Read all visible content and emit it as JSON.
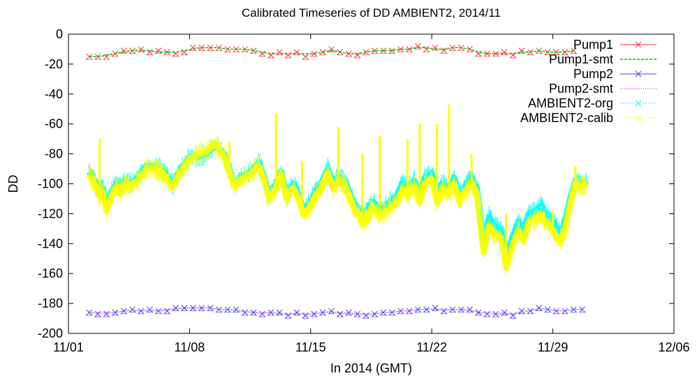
{
  "chart_data": {
    "type": "line",
    "title": "Calibrated Timeseries of DD AMBIENT2, 2014/11",
    "xlabel": "In 2014 (GMT)",
    "ylabel": "DD",
    "x_unit": "day of November 2014",
    "xlim": [
      1,
      36
    ],
    "ylim": [
      -200,
      0
    ],
    "x_ticks": [
      {
        "value": 1,
        "label": "11/01"
      },
      {
        "value": 8,
        "label": "11/08"
      },
      {
        "value": 15,
        "label": "11/15"
      },
      {
        "value": 22,
        "label": "11/22"
      },
      {
        "value": 29,
        "label": "11/29"
      },
      {
        "value": 36,
        "label": "12/06"
      }
    ],
    "y_ticks": [
      0,
      -20,
      -40,
      -60,
      -80,
      -100,
      -120,
      -140,
      -160,
      -180,
      -200
    ],
    "legend_position": "top-right",
    "series": [
      {
        "name": "Pump1",
        "color": "#ff3030",
        "style": "points-x",
        "x": [
          2.2,
          2.7,
          3.2,
          3.7,
          4.2,
          4.7,
          5.2,
          5.7,
          6.2,
          6.7,
          7.2,
          7.7,
          8.2,
          8.7,
          9.2,
          9.7,
          10.2,
          10.7,
          11.2,
          11.7,
          12.2,
          12.7,
          13.2,
          13.7,
          14.2,
          14.7,
          15.2,
          15.7,
          16.2,
          16.7,
          17.2,
          17.7,
          18.2,
          18.7,
          19.2,
          19.7,
          20.2,
          20.7,
          21.2,
          21.7,
          22.2,
          22.7,
          23.2,
          23.7,
          24.2,
          24.7,
          25.2,
          25.7,
          26.2,
          26.7,
          27.2,
          27.7,
          28.2,
          28.7,
          29.2,
          29.7,
          30.2
        ],
        "y": [
          -15,
          -15,
          -15,
          -13,
          -11,
          -11,
          -10,
          -12,
          -11,
          -12,
          -13,
          -12,
          -9,
          -9,
          -9,
          -9,
          -10,
          -10,
          -10,
          -11,
          -13,
          -14,
          -12,
          -14,
          -12,
          -15,
          -13,
          -12,
          -10,
          -12,
          -13,
          -14,
          -12,
          -11,
          -11,
          -11,
          -10,
          -10,
          -8,
          -10,
          -9,
          -11,
          -9,
          -9,
          -10,
          -13,
          -13,
          -13,
          -12,
          -14,
          -11,
          -12,
          -11,
          -12,
          -12,
          -12,
          -11
        ]
      },
      {
        "name": "Pump1-smt",
        "color": "#00cc00",
        "style": "dashed",
        "x": [
          2.2,
          2.7,
          3.2,
          3.7,
          4.2,
          4.7,
          5.2,
          5.7,
          6.2,
          6.7,
          7.2,
          7.7,
          8.2,
          8.7,
          9.2,
          9.7,
          10.2,
          10.7,
          11.2,
          11.7,
          12.2,
          12.7,
          13.2,
          13.7,
          14.2,
          14.7,
          15.2,
          15.7,
          16.2,
          16.7,
          17.2,
          17.7,
          18.2,
          18.7,
          19.2,
          19.7,
          20.2,
          20.7,
          21.2,
          21.7,
          22.2,
          22.7,
          23.2,
          23.7,
          24.2,
          24.7,
          25.2,
          25.7,
          26.2,
          26.7,
          27.2,
          27.7,
          28.2,
          28.7,
          29.2,
          29.7,
          30.2
        ],
        "y": [
          -15,
          -15,
          -14,
          -13,
          -12,
          -11,
          -11,
          -11,
          -12,
          -12,
          -12,
          -11,
          -10,
          -9,
          -9,
          -9,
          -10,
          -10,
          -10,
          -11,
          -12,
          -13,
          -13,
          -13,
          -13,
          -13,
          -13,
          -12,
          -11,
          -12,
          -13,
          -13,
          -12,
          -11,
          -11,
          -11,
          -10,
          -10,
          -9,
          -9,
          -10,
          -10,
          -9,
          -9,
          -10,
          -12,
          -13,
          -13,
          -13,
          -13,
          -12,
          -12,
          -11,
          -12,
          -12,
          -12,
          -11
        ]
      },
      {
        "name": "Pump2",
        "color": "#4040ff",
        "style": "points-x",
        "x": [
          2.2,
          2.7,
          3.2,
          3.7,
          4.2,
          4.7,
          5.2,
          5.7,
          6.2,
          6.7,
          7.2,
          7.7,
          8.2,
          8.7,
          9.2,
          9.7,
          10.2,
          10.7,
          11.2,
          11.7,
          12.2,
          12.7,
          13.2,
          13.7,
          14.2,
          14.7,
          15.2,
          15.7,
          16.2,
          16.7,
          17.2,
          17.7,
          18.2,
          18.7,
          19.2,
          19.7,
          20.2,
          20.7,
          21.2,
          21.7,
          22.2,
          22.7,
          23.2,
          23.7,
          24.2,
          24.7,
          25.2,
          25.7,
          26.2,
          26.7,
          27.2,
          27.7,
          28.2,
          28.7,
          29.2,
          29.7,
          30.2,
          30.7
        ],
        "y": [
          -186,
          -187,
          -187,
          -186,
          -185,
          -184,
          -185,
          -184,
          -185,
          -185,
          -183,
          -183,
          -183,
          -183,
          -183,
          -184,
          -184,
          -184,
          -186,
          -186,
          -187,
          -186,
          -186,
          -188,
          -186,
          -188,
          -187,
          -186,
          -185,
          -187,
          -186,
          -187,
          -188,
          -187,
          -186,
          -186,
          -185,
          -185,
          -184,
          -184,
          -183,
          -185,
          -184,
          -184,
          -184,
          -186,
          -187,
          -187,
          -186,
          -188,
          -185,
          -185,
          -183,
          -184,
          -185,
          -185,
          -184,
          -184
        ]
      },
      {
        "name": "Pump2-smt",
        "color": "#cc00cc",
        "style": "dotted",
        "x": [
          2.2,
          2.7,
          3.2,
          3.7,
          4.2,
          4.7,
          5.2,
          5.7,
          6.2,
          6.7,
          7.2,
          7.7,
          8.2,
          8.7,
          9.2,
          9.7,
          10.2,
          10.7,
          11.2,
          11.7,
          12.2,
          12.7,
          13.2,
          13.7,
          14.2,
          14.7,
          15.2,
          15.7,
          16.2,
          16.7,
          17.2,
          17.7,
          18.2,
          18.7,
          19.2,
          19.7,
          20.2,
          20.7,
          21.2,
          21.7,
          22.2,
          22.7,
          23.2,
          23.7,
          24.2,
          24.7,
          25.2,
          25.7,
          26.2,
          26.7,
          27.2,
          27.7,
          28.2,
          28.7,
          29.2,
          29.7,
          30.2,
          30.7
        ],
        "y": [
          -186,
          -186,
          -186,
          -186,
          -185,
          -185,
          -185,
          -185,
          -185,
          -184,
          -184,
          -183,
          -183,
          -183,
          -183,
          -184,
          -184,
          -185,
          -185,
          -186,
          -186,
          -186,
          -187,
          -187,
          -187,
          -187,
          -187,
          -186,
          -186,
          -186,
          -187,
          -187,
          -187,
          -187,
          -186,
          -186,
          -185,
          -185,
          -184,
          -184,
          -184,
          -184,
          -184,
          -184,
          -185,
          -186,
          -186,
          -187,
          -187,
          -187,
          -186,
          -185,
          -184,
          -184,
          -185,
          -185,
          -184,
          -184
        ]
      },
      {
        "name": "AMBIENT2-org",
        "color": "#00ffff",
        "style": "band",
        "x": [
          2.2,
          2.5,
          2.8,
          3.0,
          3.2,
          3.5,
          3.8,
          4.0,
          4.3,
          4.6,
          5.0,
          5.5,
          6.0,
          6.3,
          6.6,
          7.0,
          7.5,
          8.0,
          8.5,
          9.0,
          9.5,
          10.0,
          10.3,
          10.6,
          11.0,
          11.5,
          12.0,
          12.3,
          12.6,
          13.0,
          13.3,
          13.6,
          14.0,
          14.3,
          14.6,
          15.0,
          15.3,
          15.6,
          16.0,
          16.3,
          16.6,
          17.0,
          17.3,
          17.6,
          18.0,
          18.3,
          18.6,
          19.0,
          19.5,
          20.0,
          20.3,
          20.6,
          21.0,
          21.3,
          21.6,
          22.0,
          22.3,
          22.6,
          23.0,
          23.3,
          23.6,
          24.0,
          24.3,
          24.6,
          25.0,
          25.3,
          25.6,
          26.0,
          26.3,
          26.6,
          27.0,
          27.3,
          27.6,
          28.0,
          28.3,
          28.6,
          29.0,
          29.3,
          29.6,
          30.0,
          30.3,
          30.6,
          31.0
        ],
        "y": [
          -92,
          -98,
          -105,
          -103,
          -115,
          -105,
          -100,
          -103,
          -98,
          -100,
          -96,
          -88,
          -88,
          -90,
          -93,
          -100,
          -90,
          -82,
          -82,
          -80,
          -74,
          -80,
          -90,
          -100,
          -95,
          -92,
          -86,
          -95,
          -108,
          -100,
          -92,
          -108,
          -100,
          -107,
          -118,
          -112,
          -105,
          -100,
          -90,
          -100,
          -95,
          -98,
          -108,
          -115,
          -122,
          -118,
          -112,
          -118,
          -113,
          -108,
          -100,
          -103,
          -98,
          -108,
          -96,
          -93,
          -108,
          -100,
          -103,
          -96,
          -108,
          -100,
          -96,
          -102,
          -140,
          -122,
          -128,
          -130,
          -150,
          -138,
          -125,
          -132,
          -120,
          -118,
          -115,
          -120,
          -125,
          -132,
          -130,
          -110,
          -98,
          -100,
          -98
        ]
      },
      {
        "name": "AMBIENT2-calib",
        "color": "#ffff00",
        "style": "band",
        "x": [
          2.2,
          2.5,
          2.8,
          3.0,
          3.2,
          3.5,
          3.8,
          4.0,
          4.3,
          4.6,
          5.0,
          5.5,
          6.0,
          6.3,
          6.6,
          7.0,
          7.5,
          8.0,
          8.5,
          9.0,
          9.5,
          10.0,
          10.3,
          10.6,
          11.0,
          11.5,
          12.0,
          12.3,
          12.6,
          13.0,
          13.3,
          13.6,
          14.0,
          14.3,
          14.6,
          15.0,
          15.3,
          15.6,
          16.0,
          16.3,
          16.6,
          17.0,
          17.3,
          17.6,
          18.0,
          18.3,
          18.6,
          19.0,
          19.5,
          20.0,
          20.3,
          20.6,
          21.0,
          21.3,
          21.6,
          22.0,
          22.3,
          22.6,
          23.0,
          23.3,
          23.6,
          24.0,
          24.3,
          24.6,
          25.0,
          25.3,
          25.6,
          26.0,
          26.3,
          26.6,
          27.0,
          27.3,
          27.6,
          28.0,
          28.3,
          28.6,
          29.0,
          29.3,
          29.6,
          30.0,
          30.3,
          30.6,
          31.0
        ],
        "y": [
          -94,
          -100,
          -108,
          -106,
          -118,
          -108,
          -102,
          -105,
          -100,
          -102,
          -98,
          -90,
          -90,
          -92,
          -95,
          -102,
          -92,
          -84,
          -80,
          -78,
          -73,
          -82,
          -92,
          -102,
          -97,
          -94,
          -88,
          -97,
          -110,
          -103,
          -94,
          -110,
          -103,
          -110,
          -121,
          -115,
          -108,
          -103,
          -93,
          -103,
          -98,
          -101,
          -111,
          -118,
          -126,
          -122,
          -116,
          -122,
          -117,
          -112,
          -104,
          -107,
          -102,
          -112,
          -100,
          -97,
          -112,
          -104,
          -107,
          -100,
          -112,
          -104,
          -100,
          -106,
          -146,
          -128,
          -134,
          -136,
          -156,
          -144,
          -131,
          -138,
          -126,
          -124,
          -121,
          -126,
          -131,
          -138,
          -136,
          -114,
          -100,
          -102,
          -100
        ],
        "spikes": [
          {
            "x": 2.8,
            "y": -70
          },
          {
            "x": 10.3,
            "y": -72
          },
          {
            "x": 13.0,
            "y": -53
          },
          {
            "x": 14.5,
            "y": -85
          },
          {
            "x": 16.6,
            "y": -62
          },
          {
            "x": 18.0,
            "y": -80
          },
          {
            "x": 19.0,
            "y": -68
          },
          {
            "x": 20.6,
            "y": -70
          },
          {
            "x": 21.3,
            "y": -60
          },
          {
            "x": 22.3,
            "y": -60
          },
          {
            "x": 23.0,
            "y": -47
          },
          {
            "x": 24.3,
            "y": -80
          },
          {
            "x": 26.3,
            "y": -120
          },
          {
            "x": 29.0,
            "y": -118
          },
          {
            "x": 30.3,
            "y": -88
          }
        ]
      }
    ]
  }
}
